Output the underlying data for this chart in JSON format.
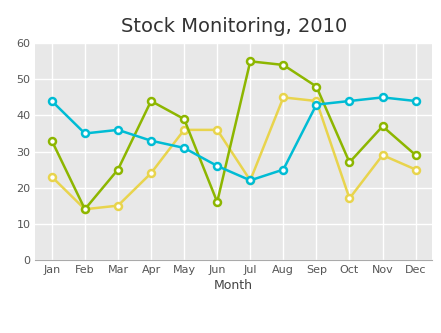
{
  "title": "Stock Monitoring, 2010",
  "xlabel": "Month",
  "months": [
    "Jan",
    "Feb",
    "Mar",
    "Apr",
    "May",
    "Jun",
    "Jul",
    "Aug",
    "Sep",
    "Oct",
    "Nov",
    "Dec"
  ],
  "portfolio1": [
    23,
    14,
    15,
    24,
    36,
    36,
    22,
    45,
    44,
    17,
    29,
    25
  ],
  "portfolio2": [
    33,
    14,
    25,
    44,
    39,
    16,
    55,
    54,
    48,
    27,
    37,
    29
  ],
  "portfolio3": [
    44,
    35,
    36,
    33,
    31,
    26,
    22,
    25,
    43,
    44,
    45,
    44
  ],
  "color1": "#e8d44d",
  "color2": "#8db600",
  "color3": "#00bcd4",
  "ylim": [
    0,
    60
  ],
  "yticks": [
    0,
    10,
    20,
    30,
    40,
    50,
    60
  ],
  "plot_bg": "#e8e8e8",
  "fig_bg": "#ffffff",
  "grid_color": "#ffffff",
  "title_fontsize": 14,
  "label_fontsize": 9,
  "tick_fontsize": 8,
  "legend_fontsize": 8.5,
  "line_width": 1.8,
  "marker_size": 5
}
